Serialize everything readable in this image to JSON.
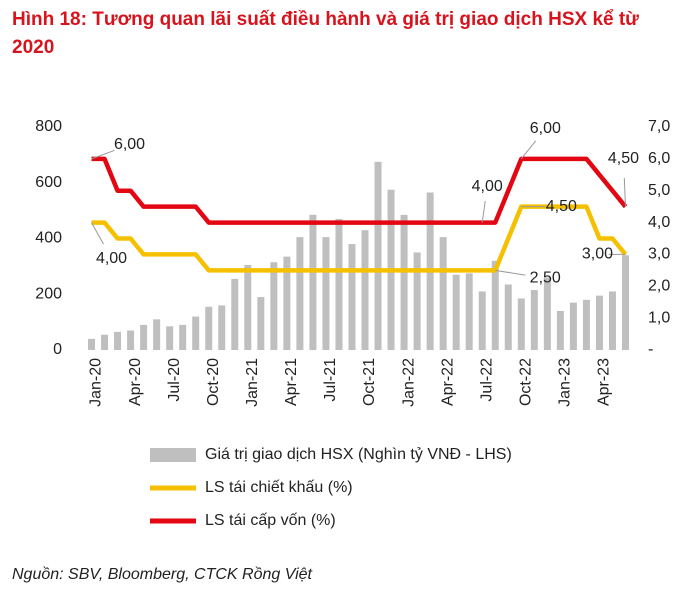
{
  "chart_data": {
    "type": "bar-line",
    "title": "Hình 18: Tương quan lãi suất điều hành và giá trị giao dịch HSX kể từ 2020",
    "source": "Nguồn: SBV, Bloomberg, CTCK Rồng Việt",
    "categories": [
      "Jan-20",
      null,
      null,
      "Apr-20",
      null,
      null,
      "Jul-20",
      null,
      null,
      "Oct-20",
      null,
      null,
      "Jan-21",
      null,
      null,
      "Apr-21",
      null,
      null,
      "Jul-21",
      null,
      null,
      "Oct-21",
      null,
      null,
      "Jan-22",
      null,
      null,
      "Apr-22",
      null,
      null,
      "Jul-22",
      null,
      null,
      "Oct-22",
      null,
      null,
      "Jan-23",
      null,
      null,
      "Apr-23",
      null,
      null
    ],
    "ylim": [
      0,
      800
    ],
    "yticks": [
      0,
      200,
      400,
      600,
      800
    ],
    "y2lim": [
      0,
      7
    ],
    "y2ticks": [
      {
        "value": 0,
        "label": "-"
      },
      {
        "value": 1,
        "label": "1,0"
      },
      {
        "value": 2,
        "label": "2,0"
      },
      {
        "value": 3,
        "label": "3,0"
      },
      {
        "value": 4,
        "label": "4,0"
      },
      {
        "value": 5,
        "label": "5,0"
      },
      {
        "value": 6,
        "label": "6,0"
      },
      {
        "value": 7,
        "label": "7,0"
      }
    ],
    "series": [
      {
        "name": "Giá trị giao dịch HSX (Nghìn tỷ VNĐ - LHS)",
        "type": "bar",
        "color": "#bfbfbf",
        "values": [
          40,
          55,
          65,
          70,
          90,
          110,
          85,
          90,
          120,
          155,
          160,
          255,
          305,
          190,
          315,
          335,
          405,
          485,
          405,
          470,
          380,
          430,
          675,
          575,
          485,
          350,
          565,
          405,
          270,
          275,
          210,
          320,
          235,
          185,
          215,
          260,
          140,
          170,
          180,
          195,
          210,
          340
        ]
      },
      {
        "name": "LS tái chiết khấu (%)",
        "type": "line",
        "axis": "y2",
        "color": "#f5c000",
        "values": [
          4.0,
          4.0,
          3.5,
          3.5,
          3.0,
          3.0,
          3.0,
          3.0,
          3.0,
          2.5,
          2.5,
          2.5,
          2.5,
          2.5,
          2.5,
          2.5,
          2.5,
          2.5,
          2.5,
          2.5,
          2.5,
          2.5,
          2.5,
          2.5,
          2.5,
          2.5,
          2.5,
          2.5,
          2.5,
          2.5,
          2.5,
          2.5,
          3.5,
          4.5,
          4.5,
          4.5,
          4.5,
          4.5,
          4.5,
          3.5,
          3.5,
          3.0
        ],
        "value_labels": [
          "4,00",
          null,
          null,
          null,
          null,
          null,
          null,
          null,
          null,
          null,
          null,
          null,
          null,
          null,
          null,
          null,
          null,
          null,
          null,
          null,
          null,
          null,
          null,
          null,
          null,
          null,
          null,
          null,
          null,
          null,
          null,
          "2,50",
          null,
          "4,50",
          null,
          null,
          null,
          null,
          null,
          null,
          null,
          "3,00"
        ]
      },
      {
        "name": "LS tái cấp vốn (%)",
        "type": "line",
        "axis": "y2",
        "color": "#e30613",
        "values": [
          6.0,
          6.0,
          5.0,
          5.0,
          4.5,
          4.5,
          4.5,
          4.5,
          4.5,
          4.0,
          4.0,
          4.0,
          4.0,
          4.0,
          4.0,
          4.0,
          4.0,
          4.0,
          4.0,
          4.0,
          4.0,
          4.0,
          4.0,
          4.0,
          4.0,
          4.0,
          4.0,
          4.0,
          4.0,
          4.0,
          4.0,
          4.0,
          5.0,
          6.0,
          6.0,
          6.0,
          6.0,
          6.0,
          6.0,
          5.5,
          5.0,
          4.5
        ],
        "value_labels": [
          "6,00",
          null,
          null,
          null,
          null,
          null,
          null,
          null,
          null,
          null,
          null,
          null,
          null,
          null,
          null,
          null,
          null,
          null,
          null,
          null,
          null,
          null,
          null,
          null,
          null,
          null,
          null,
          null,
          null,
          null,
          "4,00",
          null,
          null,
          "6,00",
          null,
          null,
          null,
          null,
          null,
          null,
          null,
          "4,50"
        ]
      }
    ]
  }
}
